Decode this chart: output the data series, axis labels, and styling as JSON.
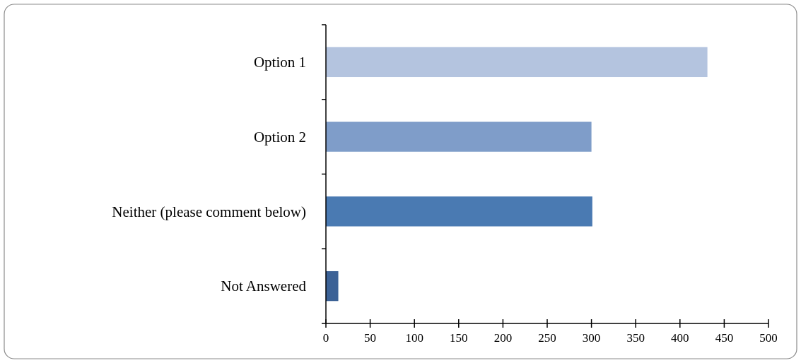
{
  "chart_data": {
    "type": "bar",
    "orientation": "horizontal",
    "categories": [
      "Option 1",
      "Option 2",
      "Neither (please comment below)",
      "Not Answered"
    ],
    "values": [
      431,
      300,
      301,
      14
    ],
    "colors": [
      "#b4c4df",
      "#7f9dc9",
      "#4a7ab2",
      "#3c6296"
    ],
    "xlim": [
      0,
      500
    ],
    "xticks": [
      0,
      50,
      100,
      150,
      200,
      250,
      300,
      350,
      400,
      450,
      500
    ],
    "grid": false
  }
}
